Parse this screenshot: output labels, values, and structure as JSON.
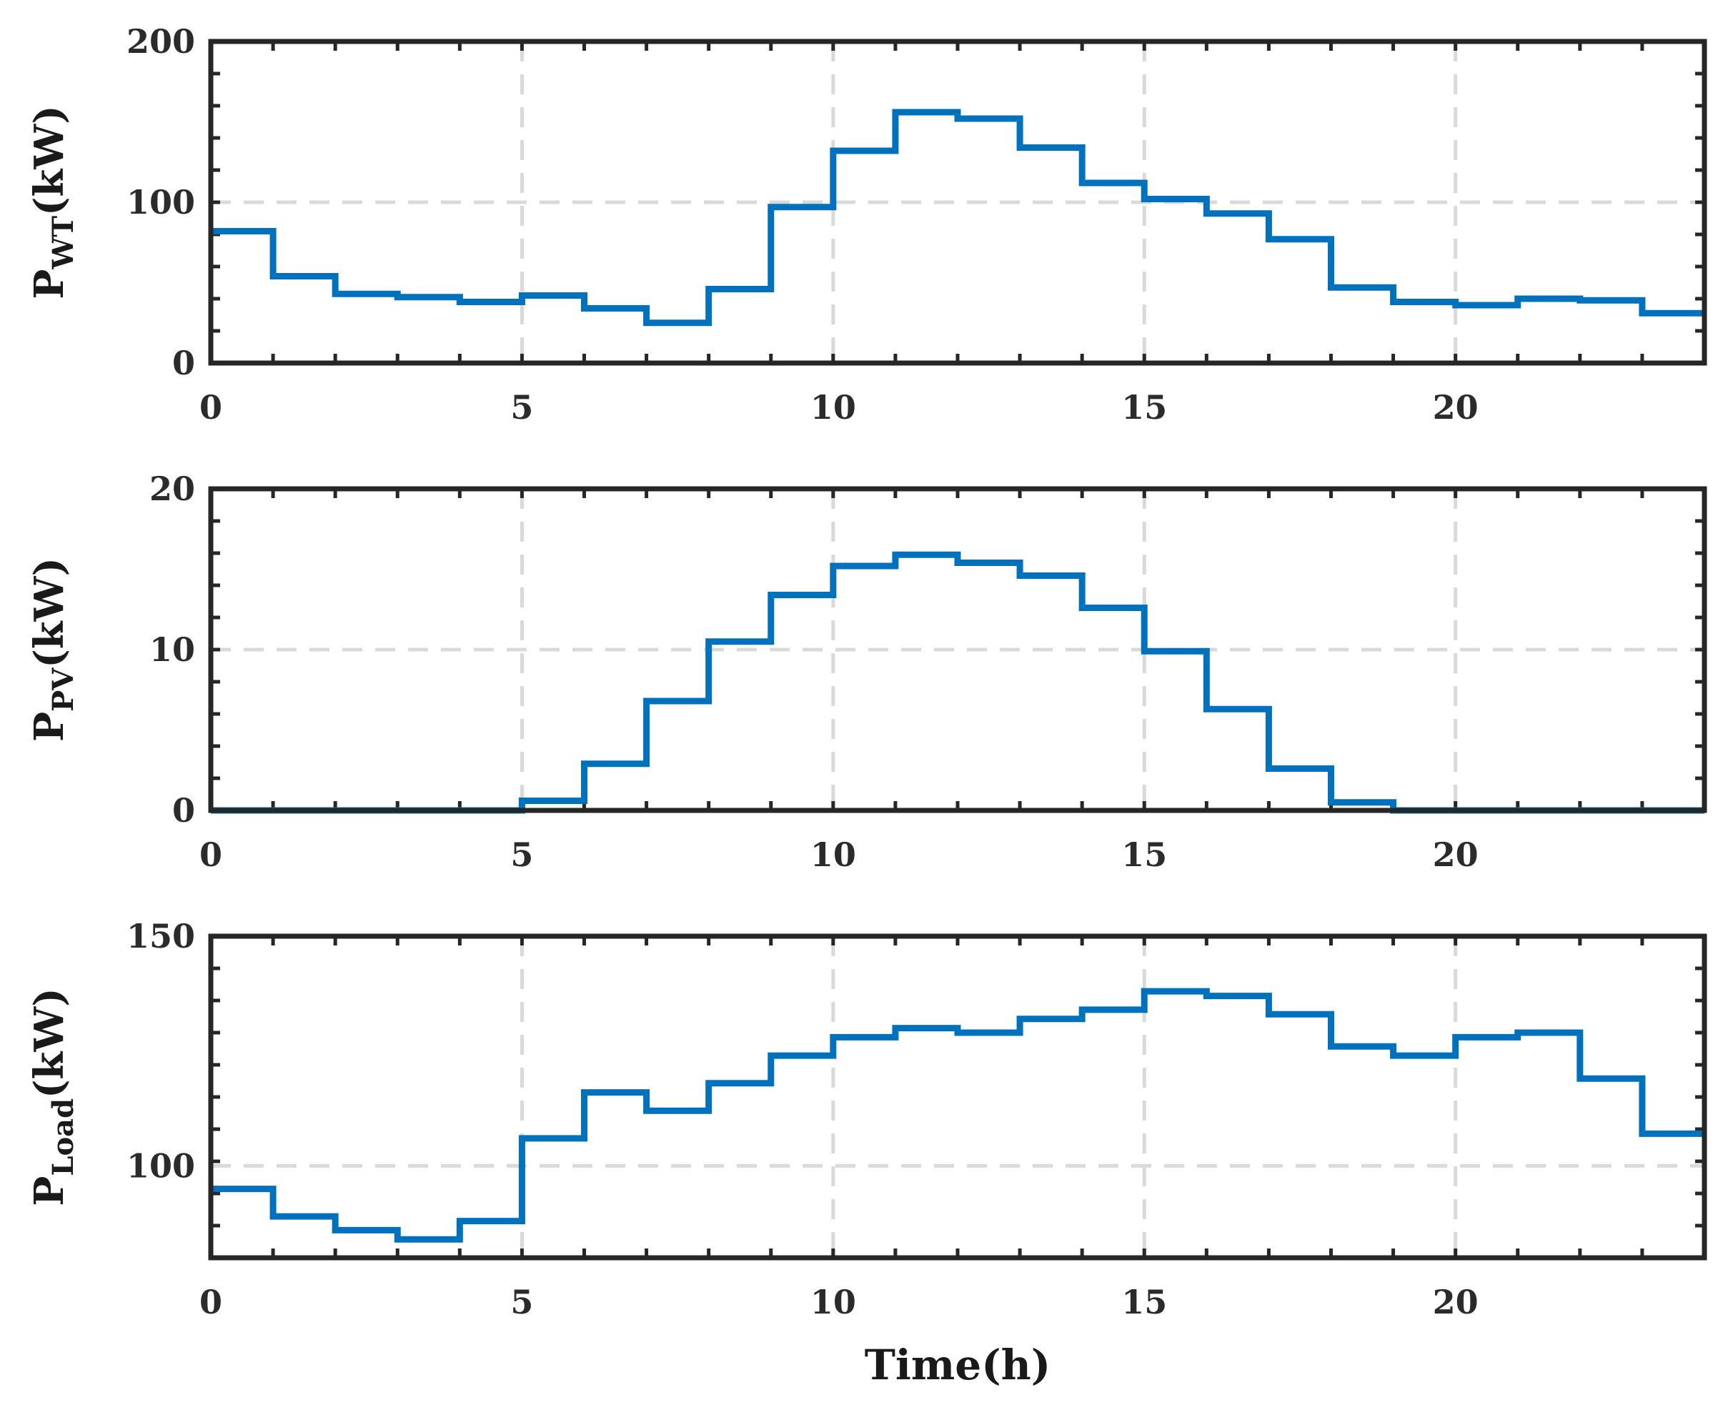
{
  "chart_data": [
    {
      "type": "line",
      "step": true,
      "title": "",
      "ylabel": "P",
      "ylabel_sub": "WT",
      "ylabel_unit": "(kW)",
      "xlabel": "",
      "xlim": [
        0,
        24
      ],
      "ylim": [
        0,
        200
      ],
      "xticks": [
        0,
        5,
        10,
        15,
        20
      ],
      "yticks": [
        0,
        100,
        200
      ],
      "grid": true,
      "color": "#0072BD",
      "series": [
        {
          "name": "P_WT",
          "x": [
            0,
            1,
            2,
            3,
            4,
            5,
            6,
            7,
            8,
            9,
            10,
            11,
            12,
            13,
            14,
            15,
            16,
            17,
            18,
            19,
            20,
            21,
            22,
            23
          ],
          "values": [
            82,
            54,
            43,
            41,
            38,
            42,
            34,
            25,
            46,
            97,
            132,
            156,
            152,
            134,
            112,
            102,
            93,
            77,
            47,
            38,
            36,
            40,
            39,
            31
          ]
        }
      ]
    },
    {
      "type": "line",
      "step": true,
      "title": "",
      "ylabel": "P",
      "ylabel_sub": "PV",
      "ylabel_unit": "(kW)",
      "xlabel": "",
      "xlim": [
        0,
        24
      ],
      "ylim": [
        0,
        20
      ],
      "xticks": [
        0,
        5,
        10,
        15,
        20
      ],
      "yticks": [
        0,
        10,
        20
      ],
      "grid": true,
      "color": "#0072BD",
      "series": [
        {
          "name": "P_PV",
          "x": [
            0,
            1,
            2,
            3,
            4,
            5,
            6,
            7,
            8,
            9,
            10,
            11,
            12,
            13,
            14,
            15,
            16,
            17,
            18,
            19,
            20,
            21,
            22,
            23
          ],
          "values": [
            0,
            0,
            0,
            0,
            0,
            0.6,
            2.9,
            6.8,
            10.5,
            13.4,
            15.2,
            15.9,
            15.4,
            14.6,
            12.6,
            9.9,
            6.3,
            2.6,
            0.5,
            0,
            0,
            0,
            0,
            0
          ]
        }
      ]
    },
    {
      "type": "line",
      "step": true,
      "title": "",
      "ylabel": "P",
      "ylabel_sub": "Load",
      "ylabel_unit": "(kW)",
      "xlabel": "Time(h)",
      "xlim": [
        0,
        24
      ],
      "ylim": [
        80,
        150
      ],
      "xticks": [
        0,
        5,
        10,
        15,
        20
      ],
      "yticks": [
        100,
        150
      ],
      "grid": true,
      "color": "#0072BD",
      "series": [
        {
          "name": "P_Load",
          "x": [
            0,
            1,
            2,
            3,
            4,
            5,
            6,
            7,
            8,
            9,
            10,
            11,
            12,
            13,
            14,
            15,
            16,
            17,
            18,
            19,
            20,
            21,
            22,
            23
          ],
          "values": [
            95,
            89,
            86,
            84,
            88,
            106,
            116,
            112,
            118,
            124,
            128,
            130,
            129,
            132,
            134,
            138,
            137,
            133,
            126,
            124,
            128,
            129,
            119,
            107
          ]
        }
      ]
    }
  ]
}
